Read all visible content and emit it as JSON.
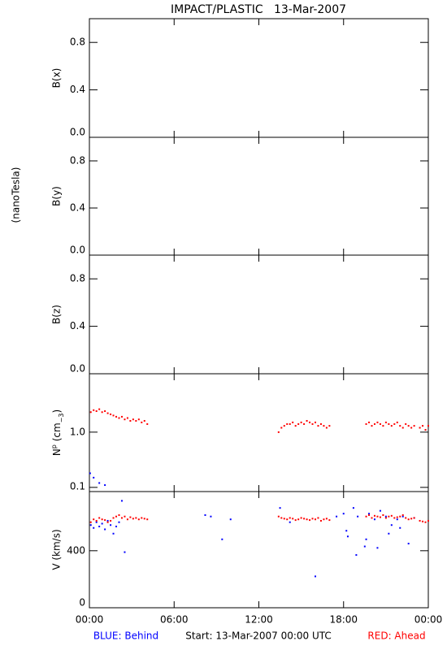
{
  "title": "IMPACT/PLASTIC   13-Mar-2007",
  "side_label": "(nanoTesla)",
  "footer": {
    "left": "BLUE: Behind",
    "center": "Start: 13-Mar-2007 00:00 UTC",
    "right": "RED: Ahead"
  },
  "chart_data": [
    {
      "type": "scatter",
      "y_label": "B(x)",
      "xlim": [
        0,
        24
      ],
      "ylim": [
        0,
        1
      ],
      "yticks": [
        {
          "value": 0,
          "label": "0.0"
        },
        0.4,
        0.8
      ],
      "series": []
    },
    {
      "type": "scatter",
      "y_label": "B(y)",
      "xlim": [
        0,
        24
      ],
      "ylim": [
        0,
        1
      ],
      "yticks": [
        {
          "value": 0,
          "label": "0.0"
        },
        0.4,
        0.8
      ],
      "series": []
    },
    {
      "type": "scatter",
      "y_label": "B(z)",
      "xlim": [
        0,
        24
      ],
      "ylim": [
        0,
        1
      ],
      "yticks": [
        {
          "value": 0,
          "label": "0.0"
        },
        0.4,
        0.8
      ],
      "series": []
    },
    {
      "type": "scatter",
      "y_label": [
        "N",
        "p",
        " (cm",
        "−3",
        ")"
      ],
      "log_y": true,
      "xlim": [
        0,
        24
      ],
      "ylim": [
        0.084,
        11.4
      ],
      "yticks": [
        0.1,
        {
          "value": 1,
          "label": "1.0"
        }
      ],
      "series": [
        {
          "color": "#0000ff",
          "x": [
            0.05,
            0.3,
            0.7,
            1.1
          ],
          "values": [
            0.18,
            0.15,
            0.12,
            0.11
          ]
        },
        {
          "color": "#ff0000",
          "x": [
            0.1,
            0.3,
            0.5,
            0.7,
            0.9,
            1.1,
            1.3,
            1.5,
            1.7,
            1.9,
            2.1,
            2.3,
            2.5,
            2.7,
            2.9,
            3.1,
            3.3,
            3.5,
            3.7,
            3.9,
            4.1,
            13.4,
            13.6,
            13.8,
            14.0,
            14.2,
            14.4,
            14.6,
            14.8,
            15.0,
            15.2,
            15.4,
            15.6,
            15.8,
            16.0,
            16.2,
            16.4,
            16.6,
            16.8,
            17.0,
            19.6,
            19.8,
            20.0,
            20.2,
            20.4,
            20.6,
            20.8,
            21.0,
            21.2,
            21.4,
            21.6,
            21.8,
            22.0,
            22.2,
            22.4,
            22.6,
            22.8,
            23.0,
            23.4,
            23.6,
            23.8,
            24.0
          ],
          "values": [
            2.3,
            2.5,
            2.4,
            2.6,
            2.3,
            2.4,
            2.2,
            2.1,
            2.0,
            1.9,
            1.8,
            1.9,
            1.7,
            1.8,
            1.6,
            1.7,
            1.6,
            1.7,
            1.5,
            1.6,
            1.4,
            1.0,
            1.2,
            1.3,
            1.4,
            1.4,
            1.5,
            1.3,
            1.4,
            1.5,
            1.4,
            1.6,
            1.5,
            1.4,
            1.5,
            1.3,
            1.4,
            1.3,
            1.2,
            1.3,
            1.4,
            1.5,
            1.3,
            1.4,
            1.5,
            1.4,
            1.3,
            1.5,
            1.4,
            1.3,
            1.4,
            1.5,
            1.3,
            1.2,
            1.4,
            1.3,
            1.2,
            1.3,
            1.2,
            1.3,
            1.1,
            1.3
          ]
        }
      ]
    },
    {
      "type": "scatter",
      "y_label": "V (km/s)",
      "xlim": [
        0,
        24
      ],
      "ylim": [
        0,
        815
      ],
      "yticks": [
        0,
        400
      ],
      "xticks": [
        {
          "value": 0,
          "label": "00:00"
        },
        {
          "value": 6,
          "label": "06:00"
        },
        {
          "value": 12,
          "label": "12:00"
        },
        {
          "value": 18,
          "label": "18:00"
        },
        {
          "value": 24,
          "label": "00:00"
        }
      ],
      "series": [
        {
          "color": "#0000ff",
          "x": [
            0.1,
            0.3,
            0.5,
            0.7,
            0.9,
            1.1,
            1.3,
            1.5,
            1.7,
            1.9,
            2.1,
            2.3,
            2.5,
            8.2,
            8.6,
            9.4,
            10.0,
            13.5,
            14.2,
            16.0,
            17.5,
            18.0,
            18.3,
            18.7,
            19.0,
            19.5,
            19.8,
            20.2,
            20.6,
            21.0,
            21.4,
            21.8,
            22.2,
            22.6,
            23.0,
            18.2,
            18.9,
            19.6,
            20.4,
            21.2,
            22.0
          ],
          "values": [
            580,
            560,
            600,
            570,
            590,
            550,
            610,
            580,
            520,
            570,
            600,
            750,
            390,
            650,
            640,
            480,
            620,
            700,
            600,
            220,
            640,
            660,
            500,
            700,
            640,
            430,
            660,
            620,
            680,
            640,
            580,
            620,
            640,
            450,
            630,
            540,
            370,
            480,
            420,
            520,
            560
          ]
        },
        {
          "color": "#ff0000",
          "x": [
            0.1,
            0.3,
            0.5,
            0.7,
            0.9,
            1.1,
            1.3,
            1.5,
            1.7,
            1.9,
            2.1,
            2.3,
            2.5,
            2.7,
            2.9,
            3.1,
            3.3,
            3.5,
            3.7,
            3.9,
            4.1,
            13.4,
            13.6,
            13.8,
            14.0,
            14.2,
            14.4,
            14.6,
            14.8,
            15.0,
            15.2,
            15.4,
            15.6,
            15.8,
            16.0,
            16.2,
            16.4,
            16.6,
            16.8,
            17.0,
            19.6,
            19.8,
            20.0,
            20.2,
            20.4,
            20.6,
            20.8,
            21.0,
            21.2,
            21.4,
            21.6,
            21.8,
            22.0,
            22.2,
            22.4,
            22.6,
            22.8,
            23.0,
            23.4,
            23.6,
            23.8,
            24.0
          ],
          "values": [
            600,
            620,
            610,
            630,
            620,
            615,
            600,
            610,
            630,
            640,
            650,
            630,
            640,
            620,
            635,
            625,
            630,
            620,
            630,
            625,
            620,
            640,
            630,
            625,
            620,
            630,
            625,
            615,
            620,
            630,
            625,
            620,
            615,
            625,
            620,
            630,
            610,
            620,
            625,
            615,
            640,
            650,
            630,
            645,
            640,
            635,
            650,
            630,
            640,
            645,
            630,
            635,
            640,
            650,
            630,
            620,
            625,
            630,
            610,
            605,
            600,
            610
          ]
        }
      ]
    }
  ]
}
